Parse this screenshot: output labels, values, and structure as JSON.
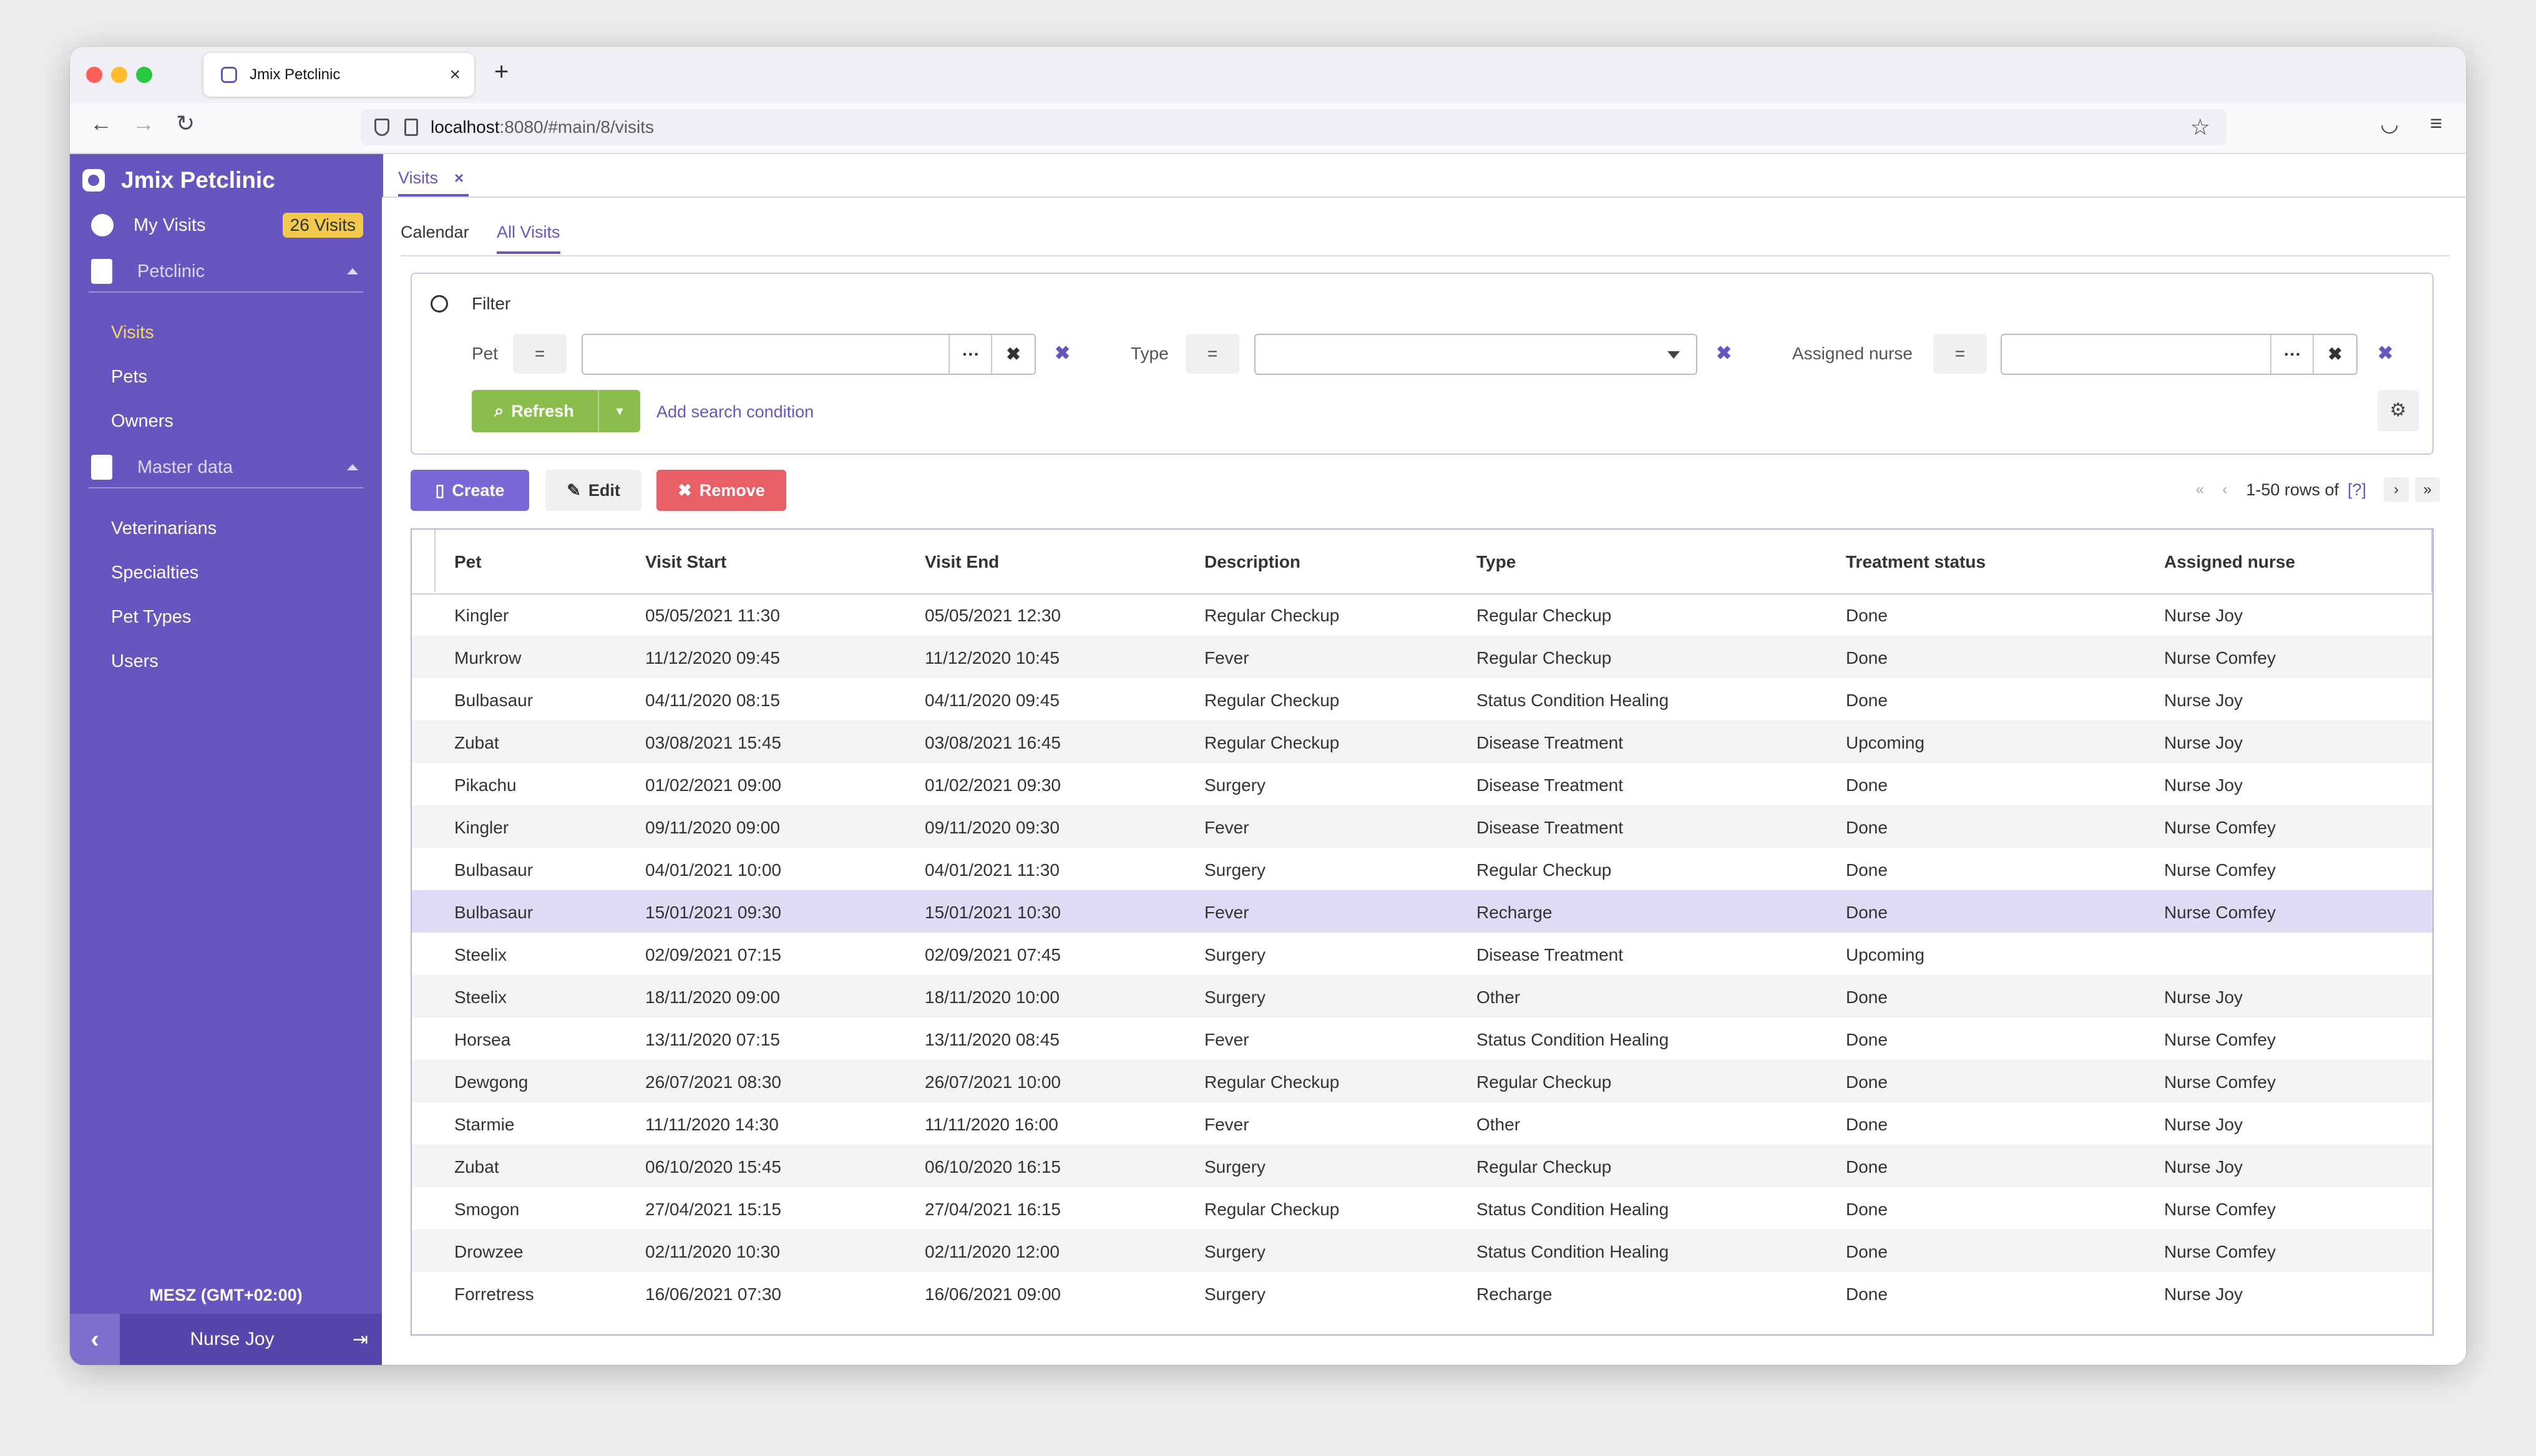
{
  "browser": {
    "tab_title": "Jmix Petclinic",
    "tab_close": "×",
    "new_tab": "+",
    "url_host": "localhost",
    "url_path": ":8080/#main/8/visits"
  },
  "sidebar": {
    "brand": "Jmix Petclinic",
    "my_visits_label": "My Visits",
    "my_visits_badge": "26 Visits",
    "groups": [
      {
        "label": "Petclinic",
        "items": [
          {
            "label": "Visits"
          },
          {
            "label": "Pets"
          },
          {
            "label": "Owners"
          }
        ]
      },
      {
        "label": "Master data",
        "items": [
          {
            "label": "Veterinarians"
          },
          {
            "label": "Specialties"
          },
          {
            "label": "Pet Types"
          },
          {
            "label": "Users"
          }
        ]
      }
    ],
    "timezone": "MESZ (GMT+02:00)",
    "user": "Nurse Joy"
  },
  "main": {
    "tab_label": "Visits",
    "subtabs": [
      "Calendar",
      "All Visits"
    ],
    "filter": {
      "title": "Filter",
      "conditions": [
        {
          "label": "Pet",
          "op": "="
        },
        {
          "label": "Type",
          "op": "="
        },
        {
          "label": "Assigned nurse",
          "op": "="
        }
      ],
      "lookup_symbol": "···",
      "clear_symbol": "✖",
      "refresh_label": "Refresh",
      "add_condition": "Add search condition"
    },
    "buttons": {
      "create": "Create",
      "edit": "Edit",
      "remove": "Remove"
    },
    "pagination": {
      "range": "1-50 rows of",
      "total": "[?]"
    },
    "columns": [
      "Pet",
      "Visit Start",
      "Visit End",
      "Description",
      "Type",
      "Treatment status",
      "Assigned nurse"
    ],
    "rows": [
      [
        "Kingler",
        "05/05/2021 11:30",
        "05/05/2021 12:30",
        "Regular Checkup",
        "Regular Checkup",
        "Done",
        "Nurse Joy"
      ],
      [
        "Murkrow",
        "11/12/2020 09:45",
        "11/12/2020 10:45",
        "Fever",
        "Regular Checkup",
        "Done",
        "Nurse Comfey"
      ],
      [
        "Bulbasaur",
        "04/11/2020 08:15",
        "04/11/2020 09:45",
        "Regular Checkup",
        "Status Condition Healing",
        "Done",
        "Nurse Joy"
      ],
      [
        "Zubat",
        "03/08/2021 15:45",
        "03/08/2021 16:45",
        "Regular Checkup",
        "Disease Treatment",
        "Upcoming",
        "Nurse Joy"
      ],
      [
        "Pikachu",
        "01/02/2021 09:00",
        "01/02/2021 09:30",
        "Surgery",
        "Disease Treatment",
        "Done",
        "Nurse Joy"
      ],
      [
        "Kingler",
        "09/11/2020 09:00",
        "09/11/2020 09:30",
        "Fever",
        "Disease Treatment",
        "Done",
        "Nurse Comfey"
      ],
      [
        "Bulbasaur",
        "04/01/2021 10:00",
        "04/01/2021 11:30",
        "Surgery",
        "Regular Checkup",
        "Done",
        "Nurse Comfey"
      ],
      [
        "Bulbasaur",
        "15/01/2021 09:30",
        "15/01/2021 10:30",
        "Fever",
        "Recharge",
        "Done",
        "Nurse Comfey"
      ],
      [
        "Steelix",
        "02/09/2021 07:15",
        "02/09/2021 07:45",
        "Surgery",
        "Disease Treatment",
        "Upcoming",
        ""
      ],
      [
        "Steelix",
        "18/11/2020 09:00",
        "18/11/2020 10:00",
        "Surgery",
        "Other",
        "Done",
        "Nurse Joy"
      ],
      [
        "Horsea",
        "13/11/2020 07:15",
        "13/11/2020 08:45",
        "Fever",
        "Status Condition Healing",
        "Done",
        "Nurse Comfey"
      ],
      [
        "Dewgong",
        "26/07/2021 08:30",
        "26/07/2021 10:00",
        "Regular Checkup",
        "Regular Checkup",
        "Done",
        "Nurse Comfey"
      ],
      [
        "Starmie",
        "11/11/2020 14:30",
        "11/11/2020 16:00",
        "Fever",
        "Other",
        "Done",
        "Nurse Joy"
      ],
      [
        "Zubat",
        "06/10/2020 15:45",
        "06/10/2020 16:15",
        "Surgery",
        "Regular Checkup",
        "Done",
        "Nurse Joy"
      ],
      [
        "Smogon",
        "27/04/2021 15:15",
        "27/04/2021 16:15",
        "Regular Checkup",
        "Status Condition Healing",
        "Done",
        "Nurse Comfey"
      ],
      [
        "Drowzee",
        "02/11/2020 10:30",
        "02/11/2020 12:00",
        "Surgery",
        "Status Condition Healing",
        "Done",
        "Nurse Comfey"
      ],
      [
        "Forretress",
        "16/06/2021 07:30",
        "16/06/2021 09:00",
        "Surgery",
        "Recharge",
        "Done",
        "Nurse Joy"
      ]
    ],
    "selected_row": 7
  },
  "colors": {
    "sidebar": "#6755c0",
    "accent": "#6755c0",
    "refresh": "#8bbd4d",
    "remove": "#e85f66",
    "badge": "#f3c94b",
    "selected_row": "#dfdbf5"
  }
}
